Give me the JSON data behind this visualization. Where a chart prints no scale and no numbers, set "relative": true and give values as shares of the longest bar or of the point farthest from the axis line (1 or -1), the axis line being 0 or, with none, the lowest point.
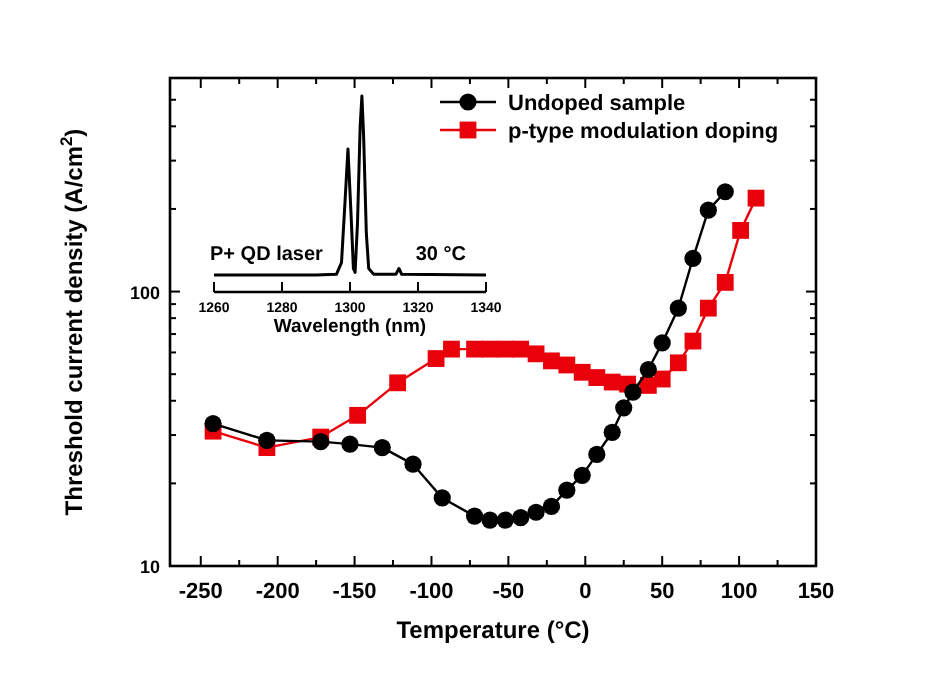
{
  "chart_data": [
    {
      "type": "line",
      "xlabel": "Temperature (°C)",
      "ylabel": "Threshold current density (A/cm$^{2}$)",
      "log": "y",
      "xlim": [
        -270,
        150
      ],
      "xticks": [
        -250,
        {
          "value": -225,
          "label": null
        },
        -200,
        {
          "value": -175,
          "label": null
        },
        -150,
        {
          "value": -125,
          "label": null
        },
        -100,
        {
          "value": -75,
          "label": null
        },
        -50,
        {
          "value": -25,
          "label": null
        },
        0,
        {
          "value": 25,
          "label": null
        },
        50,
        {
          "value": 75,
          "label": null
        },
        100,
        {
          "value": 125,
          "label": null
        },
        150
      ],
      "ylim": [
        10,
        600
      ],
      "yticks": [
        10,
        {
          "value": 20,
          "label": null
        },
        {
          "value": 30,
          "label": null
        },
        {
          "value": 40,
          "label": null
        },
        {
          "value": 50,
          "label": null
        },
        {
          "value": 60,
          "label": null
        },
        {
          "value": 70,
          "label": null
        },
        {
          "value": 80,
          "label": null
        },
        {
          "value": 90,
          "label": null
        },
        100,
        {
          "value": 200,
          "label": null
        },
        {
          "value": 300,
          "label": null
        },
        {
          "value": 400,
          "label": null
        },
        {
          "value": 500,
          "label": null
        }
      ],
      "legend": "top right",
      "line_style": "solid",
      "series": [
        {
          "name": "Undoped sample",
          "color": "#000000",
          "marker": "circle",
          "x": [
            -242,
            -207,
            -172,
            -153,
            -132,
            -112,
            -93,
            -72,
            -62,
            -52,
            -42,
            -32,
            -22,
            -12,
            -2,
            7.5,
            17.5,
            25,
            31,
            41,
            50,
            60.5,
            70,
            80,
            91
          ],
          "values": [
            33,
            28.7,
            28.4,
            27.8,
            27,
            23.5,
            17.7,
            15.2,
            14.7,
            14.7,
            15,
            15.7,
            16.5,
            18.9,
            21.4,
            25.5,
            30.7,
            37.7,
            43,
            52,
            65,
            87,
            132,
            198,
            231
          ]
        },
        {
          "name": "p-type modulation doping",
          "color": "#e8000b",
          "marker": "square",
          "x": [
            -242,
            -207,
            -172,
            -148,
            -122,
            -97,
            -87,
            -72,
            -62,
            -52,
            -42,
            -32,
            -22,
            -12,
            -2,
            7.5,
            17.5,
            27.5,
            41,
            50,
            60.5,
            70,
            80,
            91,
            101,
            111
          ],
          "values": [
            31,
            27,
            29.5,
            35.4,
            46.5,
            57,
            61.7,
            61.7,
            61.7,
            61.7,
            61.7,
            59.3,
            55.9,
            54,
            50.8,
            48.6,
            46.8,
            46,
            45.5,
            48,
            55,
            66,
            87,
            108,
            167,
            219
          ]
        }
      ]
    },
    {
      "type": "line",
      "relative": true,
      "xlabel": "Wavelength (nm)",
      "tick_labels": "x",
      "xlim": [
        1260,
        1340
      ],
      "xticks": [
        1260,
        1280,
        1300,
        1320,
        1340
      ],
      "annotations": [
        "P+ QD laser",
        "30 °C"
      ],
      "series": [
        {
          "color": "#000000",
          "x": [
            1260,
            1290,
            1296,
            1297.5,
            1298.5,
            1299.4,
            1300.3,
            1301,
            1301.5,
            1302.2,
            1303,
            1303.5,
            1304,
            1304.8,
            1305.5,
            1307,
            1313.5,
            1314.4,
            1315.2,
            1340
          ],
          "values": [
            0.087,
            0.087,
            0.09,
            0.15,
            0.45,
            0.73,
            0.4,
            0.12,
            0.1,
            0.35,
            0.85,
            1,
            0.8,
            0.3,
            0.12,
            0.09,
            0.09,
            0.12,
            0.09,
            0.087
          ]
        }
      ]
    }
  ]
}
